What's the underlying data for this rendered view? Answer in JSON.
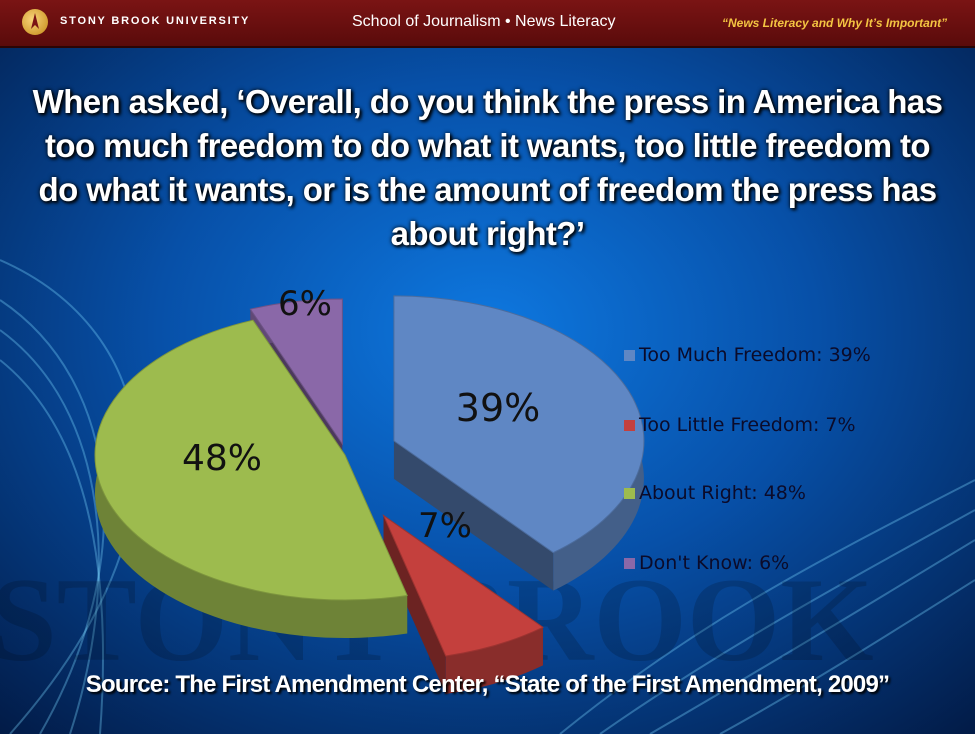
{
  "header": {
    "university": "STONY BROOK UNIVERSITY",
    "program": "School of Journalism • News Literacy",
    "tagline": "“News Literacy and Why It’s Important”"
  },
  "background": {
    "watermark": "STONY BROOK"
  },
  "chart_data": {
    "type": "pie",
    "title": "When asked, ‘Overall, do you think the press in America has too much freedom to do what it wants, too little freedom to do what it wants, or is the amount of freedom the press has about right?’",
    "slices": [
      {
        "name": "Too Much Freedom",
        "value": 39,
        "label": "39%",
        "legend": "Too Much Freedom: 39%",
        "color": "#5f87c4"
      },
      {
        "name": "Too Little Freedom",
        "value": 7,
        "label": "7%",
        "legend": "Too Little Freedom: 7%",
        "color": "#c4403d"
      },
      {
        "name": "About Right",
        "value": 48,
        "label": "48%",
        "legend": "About Right: 48%",
        "color": "#9dbb4e"
      },
      {
        "name": "Don't Know",
        "value": 6,
        "label": "6%",
        "legend": "Don't Know: 6%",
        "color": "#8a68a8"
      }
    ],
    "legend_position": "right",
    "exploded": true
  },
  "source": "Source: The First Amendment Center, “State of the First Amendment, 2009”"
}
